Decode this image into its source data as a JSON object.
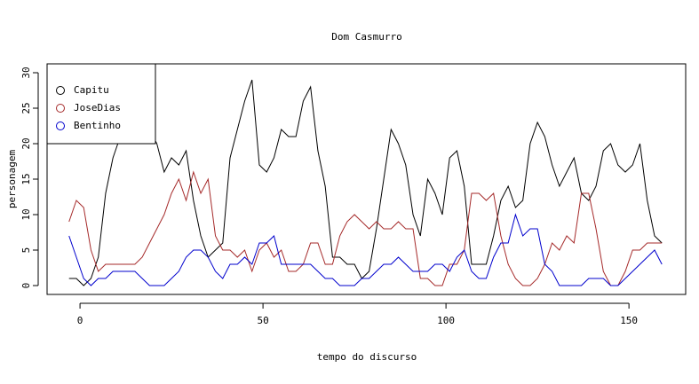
{
  "chart_data": {
    "type": "line",
    "title": "Dom Casmurro",
    "x_label": "tempo do discurso",
    "y_label": "personagem",
    "x": [
      -3,
      -1,
      1,
      3,
      5,
      7,
      9,
      11,
      13,
      15,
      17,
      19,
      21,
      23,
      25,
      27,
      29,
      31,
      33,
      35,
      37,
      39,
      41,
      43,
      45,
      47,
      49,
      51,
      53,
      55,
      57,
      59,
      61,
      63,
      65,
      67,
      69,
      71,
      73,
      75,
      77,
      79,
      81,
      83,
      85,
      87,
      89,
      91,
      93,
      95,
      97,
      99,
      101,
      103,
      105,
      107,
      109,
      111,
      113,
      115,
      117,
      119,
      121,
      123,
      125,
      127,
      129,
      131,
      133,
      135,
      137,
      139,
      141,
      143,
      145,
      147,
      149,
      151,
      153,
      155,
      157,
      159
    ],
    "series": [
      {
        "name": "Capitu",
        "color": "#000000",
        "values": [
          1,
          1,
          0,
          1,
          4,
          13,
          18,
          21,
          24,
          24,
          23,
          22,
          20,
          16,
          18,
          17,
          19,
          12,
          7,
          4,
          5,
          6,
          18,
          22,
          26,
          29,
          17,
          16,
          18,
          22,
          21,
          21,
          26,
          28,
          19,
          14,
          4,
          4,
          3,
          3,
          1,
          2,
          8,
          15,
          22,
          20,
          17,
          10,
          7,
          15,
          13,
          10,
          18,
          19,
          14,
          3,
          3,
          3,
          7,
          12,
          14,
          11,
          12,
          20,
          23,
          21,
          17,
          14,
          16,
          18,
          13,
          12,
          14,
          19,
          20,
          17,
          16,
          17,
          20,
          12,
          7,
          6
        ]
      },
      {
        "name": "JoseDias",
        "color": "#a52a2a",
        "values": [
          9,
          12,
          11,
          5,
          2,
          3,
          3,
          3,
          3,
          3,
          4,
          6,
          8,
          10,
          13,
          15,
          12,
          16,
          13,
          15,
          7,
          5,
          5,
          4,
          5,
          2,
          5,
          6,
          4,
          5,
          2,
          2,
          3,
          6,
          6,
          3,
          3,
          7,
          9,
          10,
          9,
          8,
          9,
          8,
          8,
          9,
          8,
          8,
          1,
          1,
          0,
          0,
          3,
          3,
          5,
          13,
          13,
          12,
          13,
          7,
          3,
          1,
          0,
          0,
          1,
          3,
          6,
          5,
          7,
          6,
          13,
          13,
          8,
          2,
          0,
          0,
          2,
          5,
          5,
          6,
          6,
          6
        ]
      },
      {
        "name": "Bentinho",
        "color": "#0000cd",
        "values": [
          7,
          4,
          1,
          0,
          1,
          1,
          2,
          2,
          2,
          2,
          1,
          0,
          0,
          0,
          1,
          2,
          4,
          5,
          5,
          4,
          2,
          1,
          3,
          3,
          4,
          3,
          6,
          6,
          7,
          3,
          3,
          3,
          3,
          3,
          2,
          1,
          1,
          0,
          0,
          0,
          1,
          1,
          2,
          3,
          3,
          4,
          3,
          2,
          2,
          2,
          3,
          3,
          2,
          4,
          5,
          2,
          1,
          1,
          4,
          6,
          6,
          10,
          7,
          8,
          8,
          3,
          2,
          0,
          0,
          0,
          0,
          1,
          1,
          1,
          0,
          0,
          1,
          2,
          3,
          4,
          5,
          3
        ]
      }
    ],
    "xlim": [
      -9,
      165.5
    ],
    "ylim": [
      -1.25,
      31.25
    ],
    "xticks": [
      0,
      50,
      100,
      150
    ],
    "yticks": [
      0,
      5,
      10,
      15,
      20,
      25,
      30
    ],
    "legend": "topleft"
  }
}
